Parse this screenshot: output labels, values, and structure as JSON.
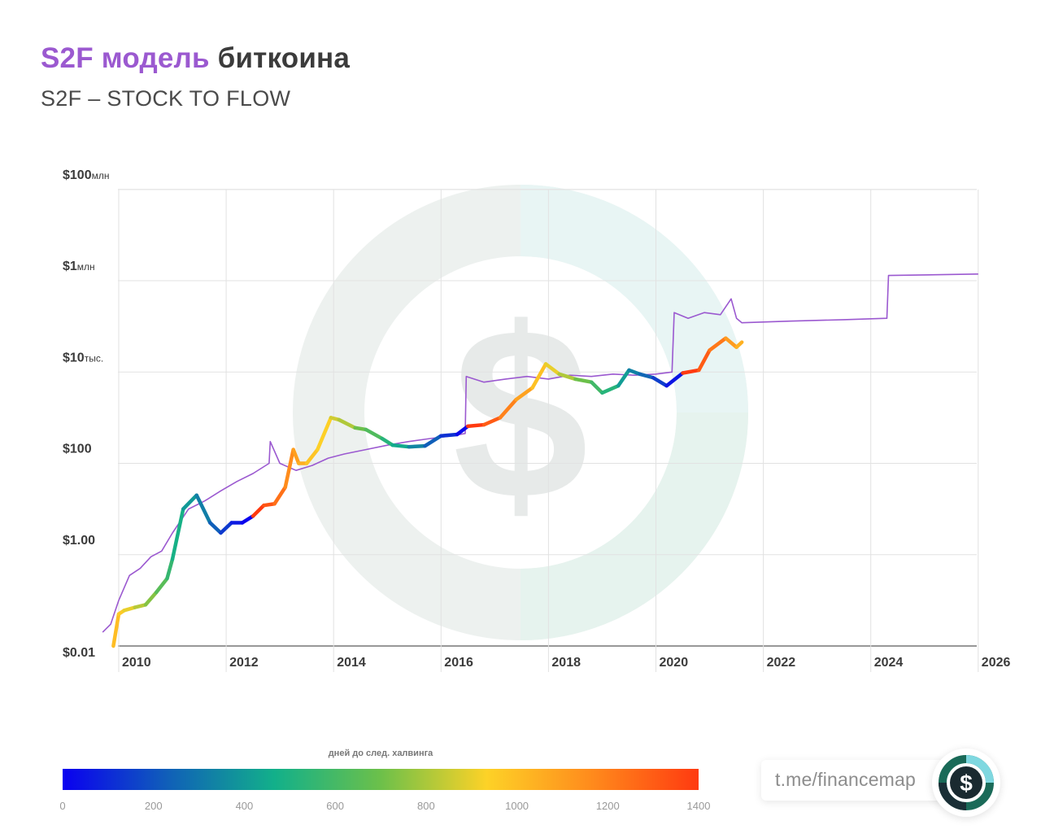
{
  "header": {
    "title_accent": "S2F модель",
    "title_rest": " биткоина",
    "subtitle": "S2F – STOCK TO FLOW"
  },
  "footer": {
    "link_text": "t.me/financemap",
    "logo_icon": "dollar-circle-icon"
  },
  "colors": {
    "title_accent": "#9b59d0",
    "model_line": "#9b59d0",
    "watermark": "#e6ebe8",
    "colorbar": [
      "#0a00f0",
      "#1060b8",
      "#12b08a",
      "#6cc04a",
      "#fdd227",
      "#ff8a1c",
      "#ff3a10"
    ]
  },
  "chart_data": {
    "type": "line",
    "yscale": "log",
    "ylim": [
      0.01,
      100000000
    ],
    "xlim": [
      2009.7,
      2026
    ],
    "y_tick_values": [
      0.01,
      1,
      100,
      10000,
      1000000,
      100000000
    ],
    "y_tick_labels": [
      {
        "main": "$0.01",
        "unit": ""
      },
      {
        "main": "$1.00",
        "unit": ""
      },
      {
        "main": "$100",
        "unit": ""
      },
      {
        "main": "$10",
        "unit": "тыс."
      },
      {
        "main": "$1",
        "unit": "млн"
      },
      {
        "main": "$100",
        "unit": "млн"
      }
    ],
    "x_ticks": [
      "2010",
      "2012",
      "2014",
      "2016",
      "2018",
      "2020",
      "2022",
      "2024",
      "2026"
    ],
    "grid": true,
    "colorbar": {
      "title": "дней до след. халвинга",
      "ticks": [
        "0",
        "200",
        "400",
        "600",
        "800",
        "1000",
        "1200",
        "1400"
      ],
      "range": [
        0,
        1400
      ]
    },
    "series": [
      {
        "kind": "s2f-model",
        "x": [
          2009.7,
          2009.85,
          2010.0,
          2010.2,
          2010.4,
          2010.6,
          2010.8,
          2011.0,
          2011.3,
          2011.6,
          2011.9,
          2012.2,
          2012.5,
          2012.8,
          2012.82,
          2013.0,
          2013.3,
          2013.6,
          2013.9,
          2014.2,
          2014.6,
          2015.0,
          2015.4,
          2015.8,
          2016.2,
          2016.45,
          2016.47,
          2016.8,
          2017.2,
          2017.6,
          2018.0,
          2018.4,
          2018.8,
          2019.2,
          2019.6,
          2020.0,
          2020.3,
          2020.34,
          2020.6,
          2020.9,
          2021.2,
          2021.4,
          2021.5,
          2021.6,
          2022.5,
          2023.5,
          2024.3,
          2024.33,
          2025.2,
          2026.0
        ],
        "y": [
          0.02,
          0.03,
          0.1,
          0.35,
          0.5,
          0.9,
          1.2,
          3,
          10,
          15,
          25,
          40,
          60,
          100,
          300,
          100,
          70,
          90,
          130,
          160,
          200,
          250,
          300,
          350,
          400,
          450,
          8000,
          6000,
          7000,
          8000,
          7000,
          8500,
          8000,
          9000,
          8500,
          9000,
          10000,
          200000,
          150000,
          200000,
          180000,
          400000,
          150000,
          120000,
          130000,
          140000,
          150000,
          1300000,
          1350000,
          1400000
        ]
      },
      {
        "kind": "btc-price",
        "x": [
          2009.9,
          2010.0,
          2010.1,
          2010.3,
          2010.5,
          2010.7,
          2010.9,
          2011.0,
          2011.2,
          2011.45,
          2011.7,
          2011.9,
          2012.1,
          2012.3,
          2012.5,
          2012.7,
          2012.9,
          2013.1,
          2013.25,
          2013.35,
          2013.5,
          2013.7,
          2013.95,
          2014.1,
          2014.4,
          2014.6,
          2014.9,
          2015.1,
          2015.4,
          2015.7,
          2016.0,
          2016.3,
          2016.5,
          2016.8,
          2017.1,
          2017.4,
          2017.7,
          2017.95,
          2018.2,
          2018.5,
          2018.8,
          2019.0,
          2019.3,
          2019.5,
          2019.7,
          2019.95,
          2020.2,
          2020.5,
          2020.8,
          2021.0,
          2021.3,
          2021.5,
          2021.6
        ],
        "y": [
          0.01,
          0.05,
          0.06,
          0.07,
          0.08,
          0.15,
          0.3,
          0.8,
          10,
          20,
          5,
          3,
          5,
          5,
          7,
          12,
          13,
          30,
          200,
          100,
          100,
          200,
          1000,
          900,
          600,
          550,
          350,
          250,
          230,
          240,
          400,
          430,
          650,
          700,
          1000,
          2500,
          4500,
          15000,
          9000,
          7000,
          6000,
          3500,
          5000,
          11000,
          9000,
          7500,
          5000,
          9500,
          11000,
          30000,
          55000,
          35000,
          45000
        ],
        "days_to_halving": [
          1000,
          960,
          900,
          820,
          740,
          650,
          560,
          480,
          400,
          320,
          230,
          140,
          60,
          10,
          1400,
          1320,
          1240,
          1160,
          1100,
          1050,
          980,
          940,
          860,
          810,
          700,
          630,
          520,
          450,
          340,
          230,
          120,
          20,
          1420,
          1300,
          1190,
          1090,
          990,
          900,
          810,
          700,
          590,
          520,
          410,
          330,
          250,
          150,
          50,
          1420,
          1300,
          1220,
          1110,
          1040,
          1000
        ]
      }
    ]
  }
}
